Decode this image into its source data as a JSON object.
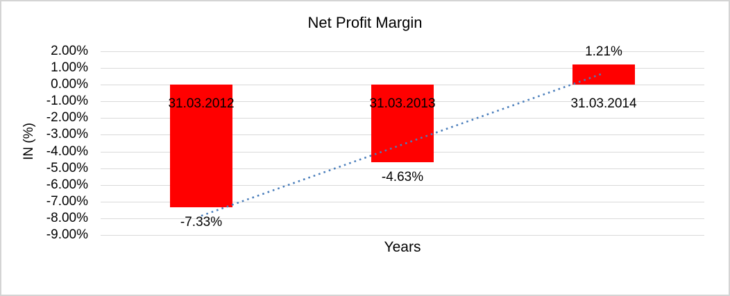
{
  "window": {
    "background": "#FFFFFF",
    "border_color": "#D4D4D4"
  },
  "chart_data": {
    "type": "bar",
    "title": "Net Profit Margin",
    "xlabel": "Years",
    "ylabel": "IN (%)",
    "categories": [
      "31.03.2012",
      "31.03.2013",
      "31.03.2014"
    ],
    "values": [
      -7.33,
      -4.63,
      1.21
    ],
    "value_labels": [
      "-7.33%",
      "-4.63%",
      "1.21%"
    ],
    "ylim": [
      -9,
      2
    ],
    "ytick_step": 1,
    "ytick_labels": [
      "2.00%",
      "1.00%",
      "0.00%",
      "-1.00%",
      "-2.00%",
      "-3.00%",
      "-4.00%",
      "-5.00%",
      "-6.00%",
      "-7.00%",
      "-8.00%",
      "-9.00%"
    ],
    "grid": true,
    "legend_position": "none",
    "bar_color": "#FF0000",
    "gridline_color": "#D9D9D9",
    "text_color": "#000000",
    "trendline": {
      "type": "linear",
      "style": "dotted",
      "color": "#4A7EBB",
      "endpoints_pct": [
        -7.85,
        0.69
      ]
    }
  }
}
